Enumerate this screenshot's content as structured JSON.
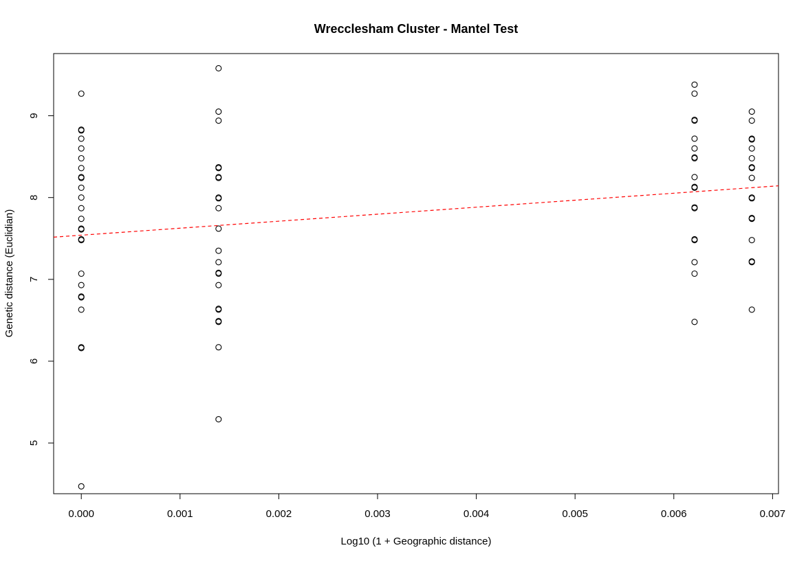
{
  "chart_data": {
    "type": "scatter",
    "title": "Wrecclesham Cluster - Mantel Test",
    "xlabel": "Log10 (1 + Geographic distance)",
    "ylabel": "Genetic distance (Euclidian)",
    "xlim": [
      -0.00028,
      0.00706
    ],
    "ylim": [
      4.38,
      9.76
    ],
    "xticks": [
      0,
      0.001,
      0.002,
      0.003,
      0.004,
      0.005,
      0.006,
      0.007
    ],
    "xtick_labels": [
      "0.000",
      "0.001",
      "0.002",
      "0.003",
      "0.004",
      "0.005",
      "0.006",
      "0.007"
    ],
    "yticks": [
      5,
      6,
      7,
      8,
      9
    ],
    "ytick_labels": [
      "5",
      "6",
      "7",
      "8",
      "9"
    ],
    "grid": false,
    "legend": "none",
    "marker": "open-circle",
    "point_color": "#000000",
    "line_color": "#ff0000",
    "regression_line": {
      "style": "dashed",
      "intercept": 7.54,
      "slope": 85.5
    },
    "points": [
      {
        "x": 0,
        "y": 9.27
      },
      {
        "x": 0,
        "y": 8.83
      },
      {
        "x": 0,
        "y": 8.82
      },
      {
        "x": 0,
        "y": 8.72
      },
      {
        "x": 0,
        "y": 8.6
      },
      {
        "x": 0,
        "y": 8.48
      },
      {
        "x": 0,
        "y": 8.36
      },
      {
        "x": 0,
        "y": 8.25
      },
      {
        "x": 0,
        "y": 8.24
      },
      {
        "x": 0,
        "y": 8.12
      },
      {
        "x": 0,
        "y": 8.0
      },
      {
        "x": 0,
        "y": 7.87
      },
      {
        "x": 0,
        "y": 7.74
      },
      {
        "x": 0,
        "y": 7.62
      },
      {
        "x": 0,
        "y": 7.61
      },
      {
        "x": 0,
        "y": 7.49
      },
      {
        "x": 0,
        "y": 7.48
      },
      {
        "x": 0,
        "y": 7.07
      },
      {
        "x": 0,
        "y": 6.93
      },
      {
        "x": 0,
        "y": 6.79
      },
      {
        "x": 0,
        "y": 6.78
      },
      {
        "x": 0,
        "y": 6.63
      },
      {
        "x": 0,
        "y": 6.17
      },
      {
        "x": 0,
        "y": 6.16
      },
      {
        "x": 0,
        "y": 4.47
      },
      {
        "x": 0.00139,
        "y": 9.58
      },
      {
        "x": 0.00139,
        "y": 9.05
      },
      {
        "x": 0.00139,
        "y": 8.94
      },
      {
        "x": 0.00139,
        "y": 8.37
      },
      {
        "x": 0.00139,
        "y": 8.36
      },
      {
        "x": 0.00139,
        "y": 8.25
      },
      {
        "x": 0.00139,
        "y": 8.24
      },
      {
        "x": 0.00139,
        "y": 8.0
      },
      {
        "x": 0.00139,
        "y": 7.99
      },
      {
        "x": 0.00139,
        "y": 7.87
      },
      {
        "x": 0.00139,
        "y": 7.62
      },
      {
        "x": 0.00139,
        "y": 7.35
      },
      {
        "x": 0.00139,
        "y": 7.21
      },
      {
        "x": 0.00139,
        "y": 7.08
      },
      {
        "x": 0.00139,
        "y": 7.07
      },
      {
        "x": 0.00139,
        "y": 6.93
      },
      {
        "x": 0.00139,
        "y": 6.64
      },
      {
        "x": 0.00139,
        "y": 6.63
      },
      {
        "x": 0.00139,
        "y": 6.49
      },
      {
        "x": 0.00139,
        "y": 6.48
      },
      {
        "x": 0.00139,
        "y": 6.17
      },
      {
        "x": 0.00139,
        "y": 5.29
      },
      {
        "x": 0.00621,
        "y": 9.38
      },
      {
        "x": 0.00621,
        "y": 9.27
      },
      {
        "x": 0.00621,
        "y": 8.95
      },
      {
        "x": 0.00621,
        "y": 8.94
      },
      {
        "x": 0.00621,
        "y": 8.72
      },
      {
        "x": 0.00621,
        "y": 8.6
      },
      {
        "x": 0.00621,
        "y": 8.49
      },
      {
        "x": 0.00621,
        "y": 8.48
      },
      {
        "x": 0.00621,
        "y": 8.25
      },
      {
        "x": 0.00621,
        "y": 8.13
      },
      {
        "x": 0.00621,
        "y": 8.12
      },
      {
        "x": 0.00621,
        "y": 7.88
      },
      {
        "x": 0.00621,
        "y": 7.87
      },
      {
        "x": 0.00621,
        "y": 7.49
      },
      {
        "x": 0.00621,
        "y": 7.48
      },
      {
        "x": 0.00621,
        "y": 7.21
      },
      {
        "x": 0.00621,
        "y": 7.07
      },
      {
        "x": 0.00621,
        "y": 6.48
      },
      {
        "x": 0.00679,
        "y": 9.05
      },
      {
        "x": 0.00679,
        "y": 8.94
      },
      {
        "x": 0.00679,
        "y": 8.72
      },
      {
        "x": 0.00679,
        "y": 8.71
      },
      {
        "x": 0.00679,
        "y": 8.6
      },
      {
        "x": 0.00679,
        "y": 8.48
      },
      {
        "x": 0.00679,
        "y": 8.37
      },
      {
        "x": 0.00679,
        "y": 8.36
      },
      {
        "x": 0.00679,
        "y": 8.24
      },
      {
        "x": 0.00679,
        "y": 8.0
      },
      {
        "x": 0.00679,
        "y": 7.99
      },
      {
        "x": 0.00679,
        "y": 7.75
      },
      {
        "x": 0.00679,
        "y": 7.74
      },
      {
        "x": 0.00679,
        "y": 7.48
      },
      {
        "x": 0.00679,
        "y": 7.22
      },
      {
        "x": 0.00679,
        "y": 7.21
      },
      {
        "x": 0.00679,
        "y": 6.63
      }
    ]
  }
}
